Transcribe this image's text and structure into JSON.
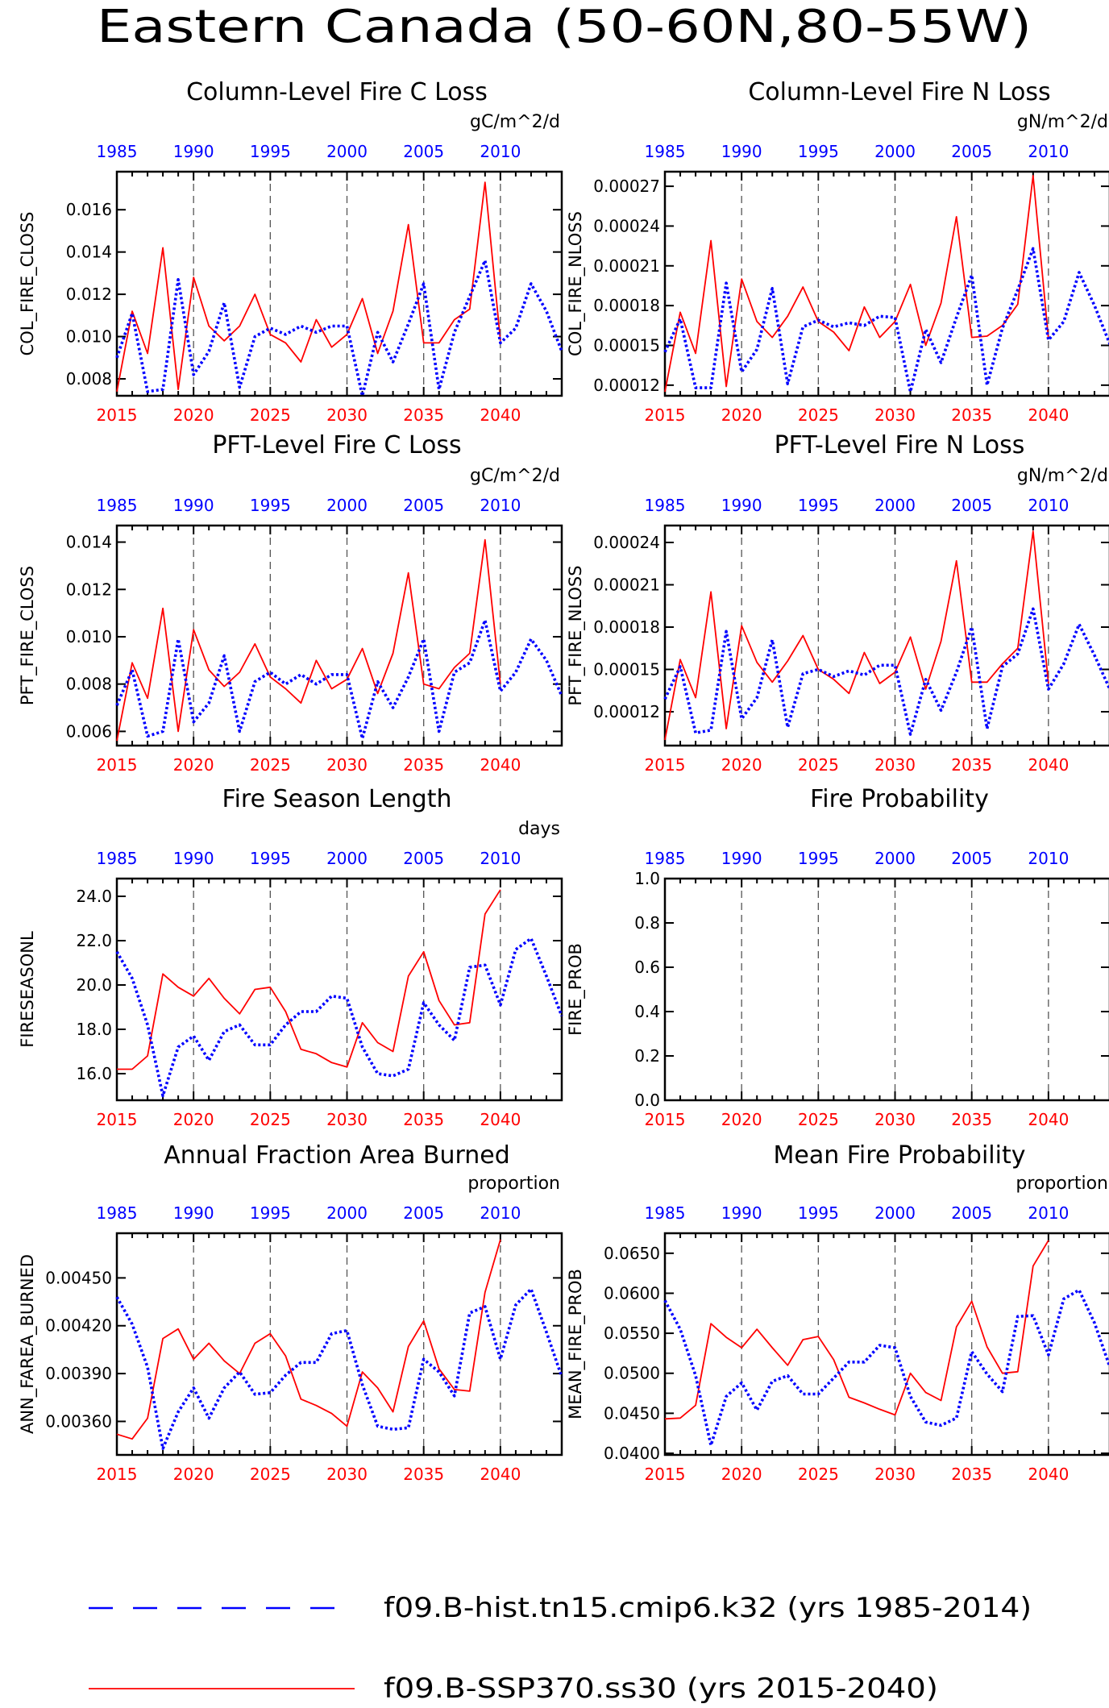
{
  "title": "Eastern Canada (50-60N,80-55W)",
  "colors": {
    "ssp": "#ff0000",
    "hist": "#0000ff",
    "axis": "#000000",
    "vline": "#555555"
  },
  "x_bottom_ticks": [
    "2015",
    "2020",
    "2025",
    "2030",
    "2035",
    "2040"
  ],
  "x_top_ticks": [
    "1985",
    "1990",
    "1995",
    "2000",
    "2005",
    "2010"
  ],
  "legend": [
    {
      "label": "f09.B-hist.tn15.cmip6.k32 (yrs 1985-2014)",
      "color": "#0000ff",
      "style": "dash"
    },
    {
      "label": "f09.B-SSP370.ss30 (yrs 2015-2040)",
      "color": "#ff0000",
      "style": "solid"
    }
  ],
  "chart_data": [
    {
      "type": "line",
      "title": "Column-Level Fire C Loss",
      "units": "gC/m^2/d",
      "ylabel": "COL_FIRE_CLOSS",
      "yticks": [
        "0.008",
        "0.010",
        "0.012",
        "0.014",
        "0.016"
      ],
      "ylim": [
        0.0072,
        0.0178
      ],
      "x_ssp": [
        2015,
        2016,
        2017,
        2018,
        2019,
        2020,
        2021,
        2022,
        2023,
        2024,
        2025,
        2026,
        2027,
        2028,
        2029,
        2030,
        2031,
        2032,
        2033,
        2034,
        2035,
        2036,
        2037,
        2038,
        2039,
        2040
      ],
      "x_hist": [
        1985,
        1986,
        1987,
        1988,
        1989,
        1990,
        1991,
        1992,
        1993,
        1994,
        1995,
        1996,
        1997,
        1998,
        1999,
        2000,
        2001,
        2002,
        2003,
        2004,
        2005,
        2006,
        2007,
        2008,
        2009,
        2010,
        2011,
        2012,
        2013,
        2014
      ],
      "series": [
        {
          "name": "f09.B-SSP370.ss30",
          "values": [
            0.0074,
            0.0112,
            0.0092,
            0.0142,
            0.0075,
            0.0128,
            0.0105,
            0.0098,
            0.0105,
            0.012,
            0.0101,
            0.0097,
            0.0088,
            0.0108,
            0.0095,
            0.0101,
            0.0118,
            0.0092,
            0.0112,
            0.0153,
            0.0097,
            0.0097,
            0.0108,
            0.0113,
            0.0173,
            0.0098
          ]
        },
        {
          "name": "f09.B-hist.tn15.cmip6.k32",
          "values": [
            0.009,
            0.0111,
            0.0074,
            0.0075,
            0.0127,
            0.0082,
            0.0093,
            0.0116,
            0.0076,
            0.01,
            0.0104,
            0.0101,
            0.0105,
            0.0102,
            0.0105,
            0.0105,
            0.0072,
            0.0102,
            0.0088,
            0.0106,
            0.0125,
            0.0075,
            0.0102,
            0.0119,
            0.0136,
            0.0097,
            0.0104,
            0.0125,
            0.0112,
            0.0093
          ]
        }
      ]
    },
    {
      "type": "line",
      "title": "Column-Level Fire N Loss",
      "units": "gN/m^2/d",
      "ylabel": "COL_FIRE_NLOSS",
      "yticks": [
        "0.00012",
        "0.00015",
        "0.00018",
        "0.00021",
        "0.00024",
        "0.00027"
      ],
      "ylim": [
        0.000112,
        0.000281
      ],
      "x_ssp": [
        2015,
        2016,
        2017,
        2018,
        2019,
        2020,
        2021,
        2022,
        2023,
        2024,
        2025,
        2026,
        2027,
        2028,
        2029,
        2030,
        2031,
        2032,
        2033,
        2034,
        2035,
        2036,
        2037,
        2038,
        2039,
        2040
      ],
      "x_hist": [
        1985,
        1986,
        1987,
        1988,
        1989,
        1990,
        1991,
        1992,
        1993,
        1994,
        1995,
        1996,
        1997,
        1998,
        1999,
        2000,
        2001,
        2002,
        2003,
        2004,
        2005,
        2006,
        2007,
        2008,
        2009,
        2010,
        2011,
        2012,
        2013,
        2014
      ],
      "series": [
        {
          "name": "f09.B-SSP370.ss30",
          "values": [
            0.000115,
            0.000175,
            0.000144,
            0.000229,
            0.000119,
            0.0002,
            0.000168,
            0.000156,
            0.000172,
            0.000194,
            0.000168,
            0.00016,
            0.000146,
            0.000179,
            0.000156,
            0.000168,
            0.000196,
            0.00015,
            0.000182,
            0.000247,
            0.000156,
            0.000157,
            0.000165,
            0.000181,
            0.000278,
            0.000155
          ]
        },
        {
          "name": "f09.B-hist.tn15.cmip6.k32",
          "values": [
            0.000145,
            0.00017,
            0.000118,
            0.000118,
            0.000197,
            0.00013,
            0.000147,
            0.000193,
            0.000121,
            0.000164,
            0.000169,
            0.000164,
            0.000167,
            0.000165,
            0.000172,
            0.000171,
            0.000115,
            0.000162,
            0.000137,
            0.000171,
            0.000203,
            0.00012,
            0.000163,
            0.000192,
            0.000223,
            0.000154,
            0.000168,
            0.000205,
            0.00018,
            0.000151
          ]
        }
      ]
    },
    {
      "type": "line",
      "title": "PFT-Level Fire C Loss",
      "units": "gC/m^2/d",
      "ylabel": "PFT_FIRE_CLOSS",
      "yticks": [
        "0.006",
        "0.008",
        "0.010",
        "0.012",
        "0.014"
      ],
      "ylim": [
        0.0054,
        0.0147
      ],
      "x_ssp": [
        2015,
        2016,
        2017,
        2018,
        2019,
        2020,
        2021,
        2022,
        2023,
        2024,
        2025,
        2026,
        2027,
        2028,
        2029,
        2030,
        2031,
        2032,
        2033,
        2034,
        2035,
        2036,
        2037,
        2038,
        2039,
        2040
      ],
      "x_hist": [
        1985,
        1986,
        1987,
        1988,
        1989,
        1990,
        1991,
        1992,
        1993,
        1994,
        1995,
        1996,
        1997,
        1998,
        1999,
        2000,
        2001,
        2002,
        2003,
        2004,
        2005,
        2006,
        2007,
        2008,
        2009,
        2010,
        2011,
        2012,
        2013,
        2014
      ],
      "series": [
        {
          "name": "f09.B-SSP370.ss30",
          "values": [
            0.0056,
            0.0089,
            0.0074,
            0.0112,
            0.006,
            0.0103,
            0.0086,
            0.0079,
            0.0085,
            0.0097,
            0.0083,
            0.0078,
            0.0072,
            0.009,
            0.0078,
            0.0082,
            0.0095,
            0.0076,
            0.0093,
            0.0127,
            0.008,
            0.0078,
            0.0087,
            0.0093,
            0.0141,
            0.008
          ]
        },
        {
          "name": "f09.B-hist.tn15.cmip6.k32",
          "values": [
            0.0071,
            0.0086,
            0.0058,
            0.006,
            0.0099,
            0.0064,
            0.0072,
            0.0092,
            0.006,
            0.0081,
            0.0085,
            0.008,
            0.0084,
            0.008,
            0.0084,
            0.0084,
            0.0057,
            0.0081,
            0.007,
            0.0083,
            0.0099,
            0.006,
            0.0085,
            0.0089,
            0.0107,
            0.0077,
            0.0085,
            0.0099,
            0.009,
            0.0075
          ]
        }
      ]
    },
    {
      "type": "line",
      "title": "PFT-Level Fire N Loss",
      "units": "gN/m^2/d",
      "ylabel": "PFT_FIRE_NLOSS",
      "yticks": [
        "0.00012",
        "0.00015",
        "0.00018",
        "0.00021",
        "0.00024"
      ],
      "ylim": [
        9.6e-05,
        0.000252
      ],
      "x_ssp": [
        2015,
        2016,
        2017,
        2018,
        2019,
        2020,
        2021,
        2022,
        2023,
        2024,
        2025,
        2026,
        2027,
        2028,
        2029,
        2030,
        2031,
        2032,
        2033,
        2034,
        2035,
        2036,
        2037,
        2038,
        2039,
        2040
      ],
      "x_hist": [
        1985,
        1986,
        1987,
        1988,
        1989,
        1990,
        1991,
        1992,
        1993,
        1994,
        1995,
        1996,
        1997,
        1998,
        1999,
        2000,
        2001,
        2002,
        2003,
        2004,
        2005,
        2006,
        2007,
        2008,
        2009,
        2010,
        2011,
        2012,
        2013,
        2014
      ],
      "series": [
        {
          "name": "f09.B-SSP370.ss30",
          "values": [
            0.0001,
            0.000157,
            0.00013,
            0.000205,
            0.000108,
            0.000181,
            0.000155,
            0.000141,
            0.000156,
            0.000174,
            0.00015,
            0.000143,
            0.000133,
            0.000162,
            0.00014,
            0.000148,
            0.000173,
            0.000136,
            0.00017,
            0.000227,
            0.000141,
            0.000141,
            0.000154,
            0.000165,
            0.000248,
            0.00014
          ]
        },
        {
          "name": "f09.B-hist.tn15.cmip6.k32",
          "values": [
            0.000129,
            0.000152,
            0.000105,
            0.000107,
            0.000177,
            0.000115,
            0.00013,
            0.000171,
            0.000109,
            0.000147,
            0.00015,
            0.000145,
            0.000149,
            0.000146,
            0.000153,
            0.000153,
            0.000104,
            0.000143,
            0.000121,
            0.000148,
            0.00018,
            0.000108,
            0.000152,
            0.000161,
            0.000193,
            0.000136,
            0.000154,
            0.000182,
            0.00016,
            0.000136
          ]
        }
      ]
    },
    {
      "type": "line",
      "title": "Fire Season Length",
      "units": "days",
      "ylabel": "FIRESEASONL",
      "yticks": [
        "16.0",
        "18.0",
        "20.0",
        "22.0",
        "24.0"
      ],
      "ylim": [
        14.8,
        24.8
      ],
      "x_ssp": [
        2015,
        2016,
        2017,
        2018,
        2019,
        2020,
        2021,
        2022,
        2023,
        2024,
        2025,
        2026,
        2027,
        2028,
        2029,
        2030,
        2031,
        2032,
        2033,
        2034,
        2035,
        2036,
        2037,
        2038,
        2039,
        2040
      ],
      "x_hist": [
        1985,
        1986,
        1987,
        1988,
        1989,
        1990,
        1991,
        1992,
        1993,
        1994,
        1995,
        1996,
        1997,
        1998,
        1999,
        2000,
        2001,
        2002,
        2003,
        2004,
        2005,
        2006,
        2007,
        2008,
        2009,
        2010,
        2011,
        2012,
        2013,
        2014
      ],
      "series": [
        {
          "name": "f09.B-SSP370.ss30",
          "values": [
            16.2,
            16.2,
            16.8,
            20.5,
            19.9,
            19.5,
            20.3,
            19.4,
            18.7,
            19.8,
            19.9,
            18.8,
            17.1,
            16.9,
            16.5,
            16.3,
            18.3,
            17.4,
            17.0,
            20.4,
            21.5,
            19.3,
            18.2,
            18.3,
            23.2,
            24.3
          ]
        },
        {
          "name": "f09.B-hist.tn15.cmip6.k32",
          "values": [
            21.5,
            20.3,
            18.2,
            15.0,
            17.2,
            17.7,
            16.6,
            17.9,
            18.2,
            17.3,
            17.3,
            18.2,
            18.8,
            18.8,
            19.5,
            19.4,
            17.2,
            16.0,
            15.9,
            16.2,
            19.2,
            18.2,
            17.5,
            20.8,
            20.9,
            19.1,
            21.6,
            22.1,
            20.4,
            18.6
          ]
        }
      ]
    },
    {
      "type": "line",
      "title": "Fire Probability",
      "units": "",
      "ylabel": "FIRE_PROB",
      "yticks": [
        "0.0",
        "0.2",
        "0.4",
        "0.6",
        "0.8",
        "1.0"
      ],
      "ylim": [
        0.0,
        1.0
      ],
      "x_ssp": [],
      "x_hist": [],
      "series": []
    },
    {
      "type": "line",
      "title": "Annual Fraction Area Burned",
      "units": "proportion",
      "ylabel": "ANN_FAREA_BURNED",
      "yticks": [
        "0.00360",
        "0.00390",
        "0.00420",
        "0.00450"
      ],
      "ylim": [
        0.00339,
        0.00478
      ],
      "x_ssp": [
        2015,
        2016,
        2017,
        2018,
        2019,
        2020,
        2021,
        2022,
        2023,
        2024,
        2025,
        2026,
        2027,
        2028,
        2029,
        2030,
        2031,
        2032,
        2033,
        2034,
        2035,
        2036,
        2037,
        2038,
        2039,
        2040
      ],
      "x_hist": [
        1985,
        1986,
        1987,
        1988,
        1989,
        1990,
        1991,
        1992,
        1993,
        1994,
        1995,
        1996,
        1997,
        1998,
        1999,
        2000,
        2001,
        2002,
        2003,
        2004,
        2005,
        2006,
        2007,
        2008,
        2009,
        2010,
        2011,
        2012,
        2013,
        2014
      ],
      "series": [
        {
          "name": "f09.B-SSP370.ss30",
          "values": [
            0.00352,
            0.00349,
            0.00362,
            0.00412,
            0.00418,
            0.00399,
            0.00409,
            0.00398,
            0.0039,
            0.00409,
            0.00415,
            0.00401,
            0.00374,
            0.0037,
            0.00365,
            0.00357,
            0.00391,
            0.00381,
            0.00366,
            0.00407,
            0.00423,
            0.00393,
            0.0038,
            0.00379,
            0.00441,
            0.00474
          ]
        },
        {
          "name": "f09.B-hist.tn15.cmip6.k32",
          "values": [
            0.00438,
            0.00421,
            0.00394,
            0.00343,
            0.00366,
            0.00381,
            0.00362,
            0.00381,
            0.00391,
            0.00377,
            0.00378,
            0.00389,
            0.00397,
            0.00397,
            0.00415,
            0.00417,
            0.00383,
            0.00357,
            0.00355,
            0.00356,
            0.00399,
            0.00391,
            0.00376,
            0.00428,
            0.00432,
            0.00399,
            0.00433,
            0.00443,
            0.00416,
            0.00388
          ]
        }
      ]
    },
    {
      "type": "line",
      "title": "Mean Fire Probability",
      "units": "proportion",
      "ylabel": "MEAN_FIRE_PROB",
      "yticks": [
        "0.0400",
        "0.0450",
        "0.0500",
        "0.0550",
        "0.0600",
        "0.0650"
      ],
      "ylim": [
        0.0398,
        0.0675
      ],
      "x_ssp": [
        2015,
        2016,
        2017,
        2018,
        2019,
        2020,
        2021,
        2022,
        2023,
        2024,
        2025,
        2026,
        2027,
        2028,
        2029,
        2030,
        2031,
        2032,
        2033,
        2034,
        2035,
        2036,
        2037,
        2038,
        2039,
        2040
      ],
      "x_hist": [
        1985,
        1986,
        1987,
        1988,
        1989,
        1990,
        1991,
        1992,
        1993,
        1994,
        1995,
        1996,
        1997,
        1998,
        1999,
        2000,
        2001,
        2002,
        2003,
        2004,
        2005,
        2006,
        2007,
        2008,
        2009,
        2010,
        2011,
        2012,
        2013,
        2014
      ],
      "series": [
        {
          "name": "f09.B-SSP370.ss30",
          "values": [
            0.0443,
            0.0444,
            0.046,
            0.0562,
            0.0545,
            0.0532,
            0.0555,
            0.0532,
            0.051,
            0.0542,
            0.0546,
            0.0517,
            0.047,
            0.0463,
            0.0455,
            0.0448,
            0.05,
            0.0476,
            0.0466,
            0.0558,
            0.059,
            0.0533,
            0.05,
            0.0502,
            0.0634,
            0.0666
          ]
        },
        {
          "name": "f09.B-hist.tn15.cmip6.k32",
          "values": [
            0.0591,
            0.0555,
            0.0497,
            0.041,
            0.0471,
            0.0488,
            0.0454,
            0.049,
            0.0497,
            0.0474,
            0.0474,
            0.0494,
            0.0514,
            0.0514,
            0.0535,
            0.0532,
            0.0471,
            0.0439,
            0.0435,
            0.0444,
            0.0527,
            0.0499,
            0.0477,
            0.0571,
            0.0572,
            0.0523,
            0.0593,
            0.0604,
            0.0563,
            0.0508
          ]
        }
      ]
    }
  ]
}
